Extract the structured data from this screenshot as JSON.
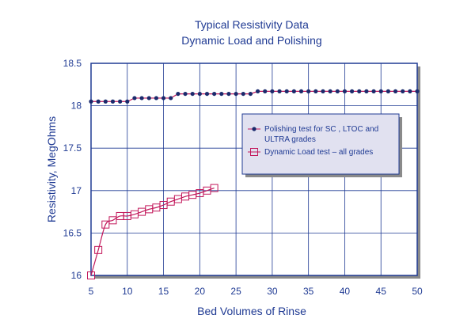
{
  "chart_data": {
    "type": "line",
    "title": "Typical Resistivity Data",
    "subtitle": "Dynamic Load and Polishing",
    "xlabel": "Bed Volumes of Rinse",
    "ylabel": "Resistivity, MegOhms",
    "xlim": [
      5,
      50
    ],
    "ylim": [
      16,
      18.5
    ],
    "xticks": [
      5,
      10,
      15,
      20,
      25,
      30,
      35,
      40,
      45,
      50
    ],
    "yticks": [
      16,
      16.5,
      17,
      17.5,
      18,
      18.5
    ],
    "xtick_labels": [
      "5",
      "10",
      "15",
      "20",
      "25",
      "30",
      "35",
      "40",
      "45",
      "50"
    ],
    "ytick_labels": [
      "16",
      "16.5",
      "17",
      "17.5",
      "18",
      "18.5"
    ],
    "grid": true,
    "legend_position": "right-center",
    "series": [
      {
        "name": "Polishing test for SC , LTOC and ULTRA grades",
        "marker": "filled-circle",
        "color": "#c2185b",
        "marker_color": "#1a2a6c",
        "x": [
          5,
          6,
          7,
          8,
          9,
          10,
          11,
          12,
          13,
          14,
          15,
          16,
          17,
          18,
          19,
          20,
          21,
          22,
          23,
          24,
          25,
          26,
          27,
          28,
          29,
          30,
          31,
          32,
          33,
          34,
          35,
          36,
          37,
          38,
          39,
          40,
          41,
          42,
          43,
          44,
          45,
          46,
          47,
          48,
          49,
          50
        ],
        "y": [
          18.05,
          18.05,
          18.05,
          18.05,
          18.05,
          18.05,
          18.09,
          18.09,
          18.09,
          18.09,
          18.09,
          18.09,
          18.14,
          18.14,
          18.14,
          18.14,
          18.14,
          18.14,
          18.14,
          18.14,
          18.14,
          18.14,
          18.14,
          18.17,
          18.17,
          18.17,
          18.17,
          18.17,
          18.17,
          18.17,
          18.17,
          18.17,
          18.17,
          18.17,
          18.17,
          18.17,
          18.17,
          18.17,
          18.17,
          18.17,
          18.17,
          18.17,
          18.17,
          18.17,
          18.17,
          18.17
        ]
      },
      {
        "name": "Dynamic Load test – all grades",
        "marker": "open-square",
        "color": "#c2185b",
        "marker_color": "#c2185b",
        "x": [
          5,
          6,
          7,
          8,
          9,
          10,
          11,
          12,
          13,
          14,
          15,
          16,
          17,
          18,
          19,
          20,
          21,
          22
        ],
        "y": [
          16.0,
          16.3,
          16.6,
          16.65,
          16.7,
          16.7,
          16.72,
          16.75,
          16.78,
          16.8,
          16.83,
          16.87,
          16.9,
          16.93,
          16.95,
          16.97,
          17.0,
          17.03
        ]
      }
    ]
  }
}
